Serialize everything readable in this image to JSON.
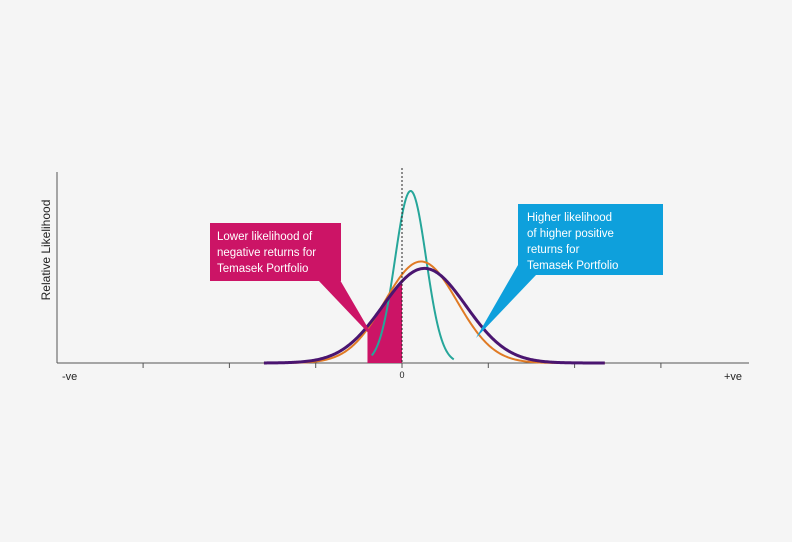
{
  "chart_data": {
    "type": "line",
    "title": "",
    "xlabel": "",
    "ylabel": "Relative Likelihood",
    "x_tick_labels": {
      "left": "-ve",
      "center": "0",
      "right": "+ve"
    },
    "xlim": [
      -4,
      4
    ],
    "grid": false,
    "legend": "none",
    "reference_line": {
      "x": 0,
      "style": "dotted"
    },
    "series": [
      {
        "color": "#26a69a",
        "mean": 0.1,
        "sd": 0.18,
        "peak": 1.0,
        "x_range": [
          -0.35,
          0.6
        ]
      },
      {
        "color": "#e07a24",
        "mean": 0.22,
        "sd": 0.42,
        "peak": 0.59,
        "x_range": [
          -1.6,
          2.35
        ]
      },
      {
        "color": "#4a1570",
        "mean": 0.26,
        "sd": 0.48,
        "peak": 0.55,
        "x_range": [
          -1.6,
          2.35
        ]
      }
    ],
    "shaded_region": {
      "x_range": [
        -0.4,
        0
      ],
      "color": "#cc1466",
      "under_series_index": 2
    },
    "annotations": [
      {
        "lines": [
          "Lower likelihood of",
          "negative returns for",
          "Temasek Portfolio"
        ],
        "color": "#cc1466",
        "position": "left"
      },
      {
        "lines": [
          "Higher likelihood",
          "of higher positive",
          "returns for",
          "Temasek Portfolio"
        ],
        "color": "#0ea0dc",
        "position": "right"
      }
    ]
  }
}
